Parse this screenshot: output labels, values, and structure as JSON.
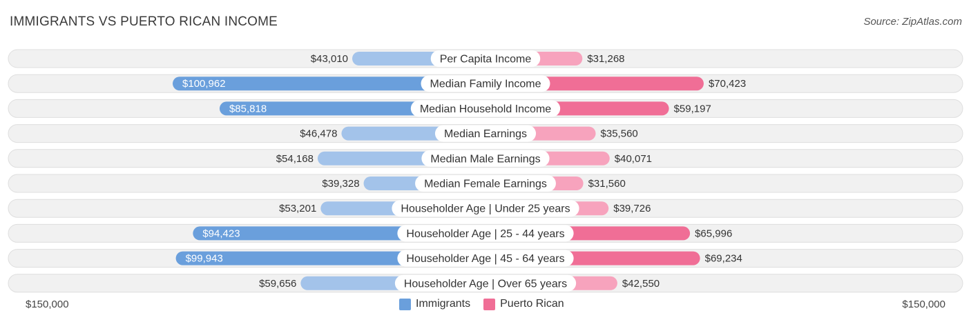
{
  "title": "IMMIGRANTS VS PUERTO RICAN INCOME",
  "source": "Source: ZipAtlas.com",
  "colors": {
    "left_strong": "#6a9fdc",
    "left_light": "#a3c3ea",
    "right_strong": "#f06e96",
    "right_light": "#f7a3bd",
    "track": "#f1f1f1",
    "track_border": "#dedede"
  },
  "legend": {
    "left": "Immigrants",
    "right": "Puerto Rican"
  },
  "axis": {
    "left_label": "$150,000",
    "right_label": "$150,000"
  },
  "chart_data": {
    "type": "bar",
    "orientation": "horizontal-diverging",
    "title": "IMMIGRANTS VS PUERTO RICAN INCOME",
    "xlim": [
      0,
      150000
    ],
    "series": [
      {
        "name": "Immigrants",
        "values": [
          43010,
          100962,
          85818,
          46478,
          54168,
          39328,
          53201,
          94423,
          99943,
          59656
        ],
        "labels": [
          "$43,010",
          "$100,962",
          "$85,818",
          "$46,478",
          "$54,168",
          "$39,328",
          "$53,201",
          "$94,423",
          "$99,943",
          "$59,656"
        ]
      },
      {
        "name": "Puerto Rican",
        "values": [
          31268,
          70423,
          59197,
          35560,
          40071,
          31560,
          39726,
          65996,
          69234,
          42550
        ],
        "labels": [
          "$31,268",
          "$70,423",
          "$59,197",
          "$35,560",
          "$40,071",
          "$31,560",
          "$39,726",
          "$65,996",
          "$69,234",
          "$42,550"
        ]
      }
    ],
    "categories": [
      "Per Capita Income",
      "Median Family Income",
      "Median Household Income",
      "Median Earnings",
      "Median Male Earnings",
      "Median Female Earnings",
      "Householder Age | Under 25 years",
      "Householder Age | 25 - 44 years",
      "Householder Age | 45 - 64 years",
      "Householder Age | Over 65 years"
    ],
    "highlight": [
      false,
      true,
      true,
      false,
      false,
      false,
      false,
      true,
      true,
      false
    ],
    "legend_position": "bottom-center"
  }
}
